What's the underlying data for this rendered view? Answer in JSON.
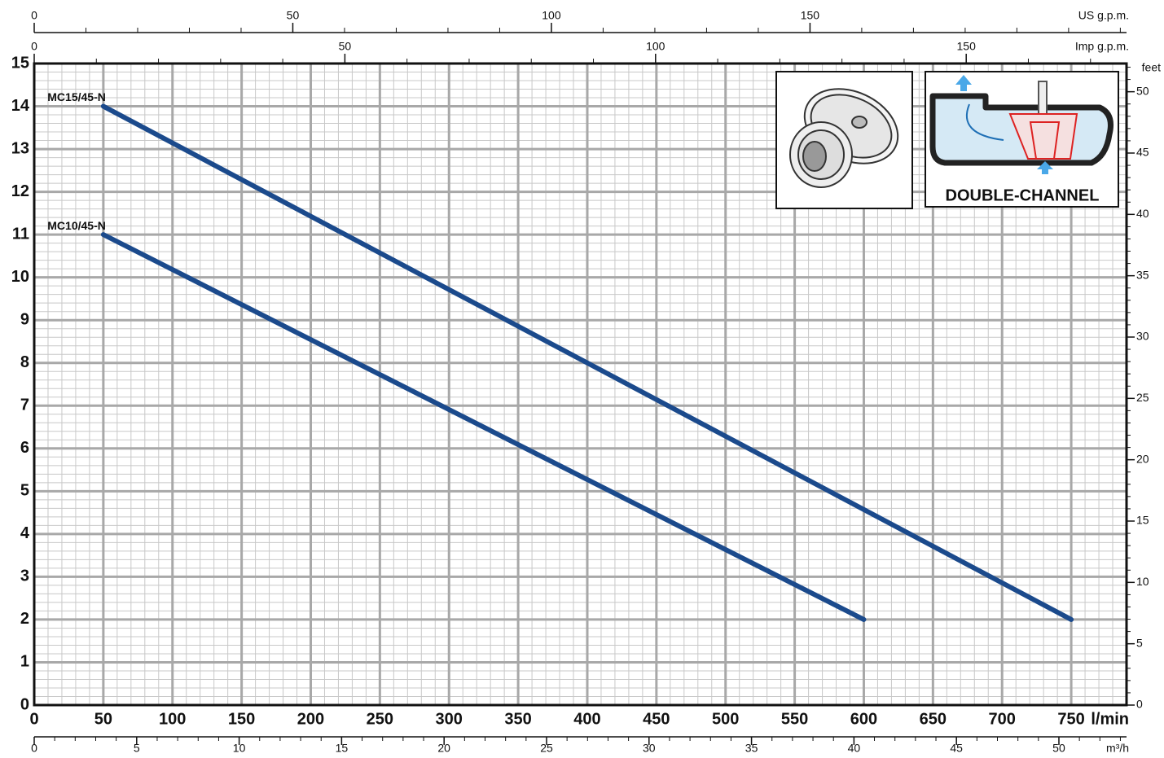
{
  "chart_data": {
    "type": "line",
    "x_label": "l/min",
    "xlim": [
      0,
      790
    ],
    "xticks": [
      0,
      50,
      100,
      150,
      200,
      250,
      300,
      350,
      400,
      450,
      500,
      550,
      600,
      650,
      700,
      750
    ],
    "ylim": [
      0,
      15
    ],
    "yticks": [
      0,
      1,
      2,
      3,
      4,
      5,
      6,
      7,
      8,
      9,
      10,
      11,
      12,
      13,
      14,
      15
    ],
    "y2_label": "feet",
    "y2lim": [
      0,
      52.3
    ],
    "y2ticks": [
      0,
      5,
      10,
      15,
      20,
      25,
      30,
      35,
      40,
      45,
      50
    ],
    "top_axes": [
      {
        "label": "US g.p.m.",
        "lim": [
          0,
          211.2
        ],
        "ticks": [
          0,
          50,
          100,
          150
        ]
      },
      {
        "label": "Imp g.p.m.",
        "lim": [
          0,
          175.8
        ],
        "ticks": [
          0,
          50,
          100,
          150
        ]
      }
    ],
    "bottom_axis2": {
      "label": "m³/h",
      "lim": [
        0,
        53.3
      ],
      "ticks": [
        0,
        5,
        10,
        15,
        20,
        25,
        30,
        35,
        40,
        45,
        50
      ]
    },
    "grid": true,
    "series": [
      {
        "name": "MC15/45-N",
        "color": "#1b4a8c",
        "x": [
          50,
          750
        ],
        "values": [
          14,
          2
        ]
      },
      {
        "name": "MC10/45-N",
        "color": "#1b4a8c",
        "x": [
          50,
          600
        ],
        "values": [
          11,
          2
        ]
      }
    ],
    "inset_label": "DOUBLE-CHANNEL"
  }
}
